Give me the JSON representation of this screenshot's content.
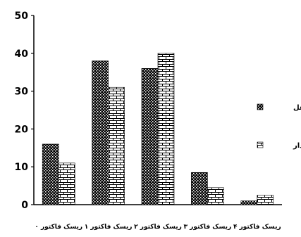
{
  "chart_data": {
    "type": "bar",
    "title": "",
    "xlabel": "",
    "ylabel": "",
    "ylim": [
      0,
      50
    ],
    "yticks": [
      0,
      10,
      20,
      30,
      40,
      50
    ],
    "grid": false,
    "legend_position": "right",
    "categories": [
      "ریسک فاکتور ۰",
      "ریسک فاکتور ۱",
      "ریسک فاکتور ۲",
      "ریسک فاکتور ۳",
      "ریسک فاکتور ۴"
    ],
    "series": [
      {
        "name": "زنان شاغل",
        "pattern": "dots",
        "values": [
          16,
          38,
          36,
          8.5,
          1
        ]
      },
      {
        "name": "زنان خانه دار",
        "pattern": "bricks",
        "values": [
          11,
          31,
          40,
          4.5,
          2.5
        ]
      }
    ],
    "colors": {
      "axis": "#000000",
      "bar_fill": "#ffffff",
      "pattern_ink": "#000000"
    }
  }
}
